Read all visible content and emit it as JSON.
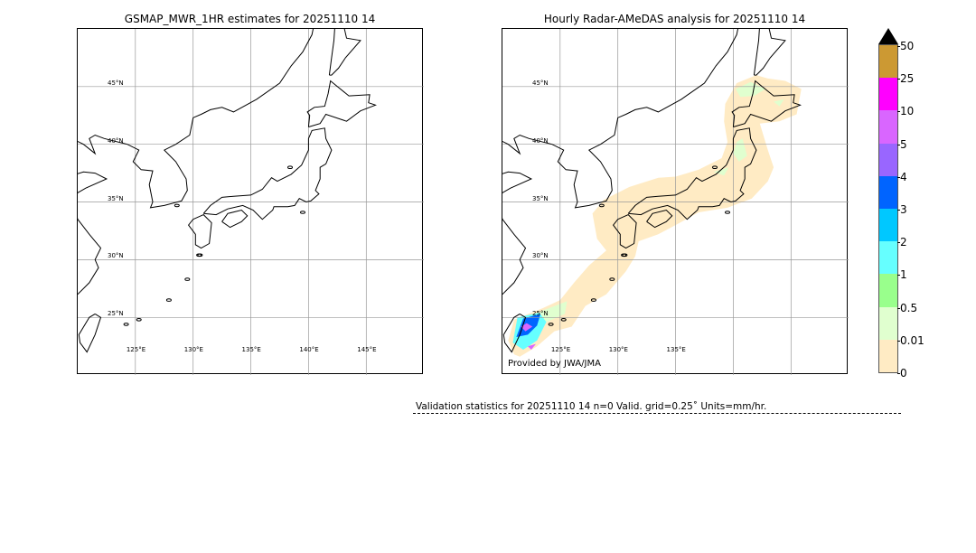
{
  "left_panel": {
    "title": "GSMAP_MWR_1HR estimates for 20251110 14",
    "lat_labels": [
      "45°N",
      "40°N",
      "35°N",
      "30°N",
      "25°N"
    ],
    "lon_labels": [
      "125°E",
      "130°E",
      "135°E",
      "140°E",
      "145°E"
    ]
  },
  "right_panel": {
    "title": "Hourly Radar-AMeDAS analysis for 20251110 14",
    "lat_labels": [
      "45°N",
      "40°N",
      "35°N",
      "30°N",
      "25°N"
    ],
    "lon_labels": [
      "125°E",
      "130°E",
      "135°E"
    ],
    "credit": "Provided by JWA/JMA"
  },
  "colorbar": {
    "ticks": [
      "0",
      "0.01",
      "0.5",
      "1",
      "2",
      "3",
      "4",
      "5",
      "10",
      "25",
      "50"
    ],
    "colors": [
      "#ffebc4",
      "#e0ffcf",
      "#99ff8c",
      "#66ffff",
      "#00c8ff",
      "#0064ff",
      "#9966ff",
      "#d966ff",
      "#ff00ff",
      "#cc9933"
    ],
    "extend_color": "#000000"
  },
  "validation": {
    "text": "Validation statistics for 20251110 14  n=0 Valid. grid=0.25˚ Units=mm/hr."
  }
}
